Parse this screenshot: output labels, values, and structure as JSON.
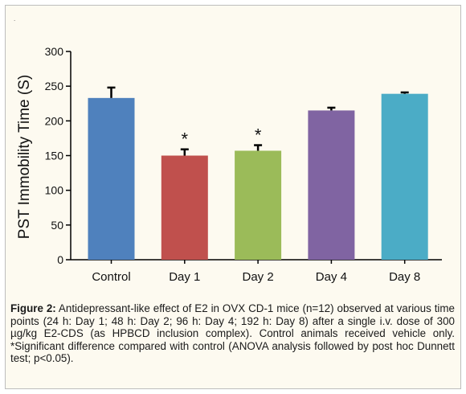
{
  "corner_mark": ".",
  "chart_data": {
    "type": "bar",
    "categories": [
      "Control",
      "Day 1",
      "Day 2",
      "Day 4",
      "Day 8"
    ],
    "values": [
      233,
      150,
      157,
      215,
      239
    ],
    "errors": [
      15,
      9,
      8,
      4,
      2
    ],
    "significant": [
      false,
      true,
      true,
      false,
      false
    ],
    "significance_marker": "*",
    "bar_colors": [
      "#4f81bd",
      "#c0504d",
      "#9bbb59",
      "#8064a2",
      "#4bacc6"
    ],
    "ylabel": "PST  Immobility Time (S)",
    "xlabel": "",
    "ylim": [
      0,
      300
    ],
    "yticks": [
      0,
      50,
      100,
      150,
      200,
      250,
      300
    ],
    "grid": false
  },
  "caption": {
    "label": "Figure 2:",
    "text": " Antidepressant-like effect of E2 in OVX CD-1 mice (n=12) observed at various time points (24 h: Day 1; 48 h: Day 2; 96 h: Day 4; 192 h: Day 8) after a single i.v. dose of 300 µg/kg E2-CDS (as HPBCD inclusion complex). Control animals received vehicle only. *Significant difference compared with control (ANOVA analysis followed by post hoc Dunnett test; p<0.05)."
  }
}
